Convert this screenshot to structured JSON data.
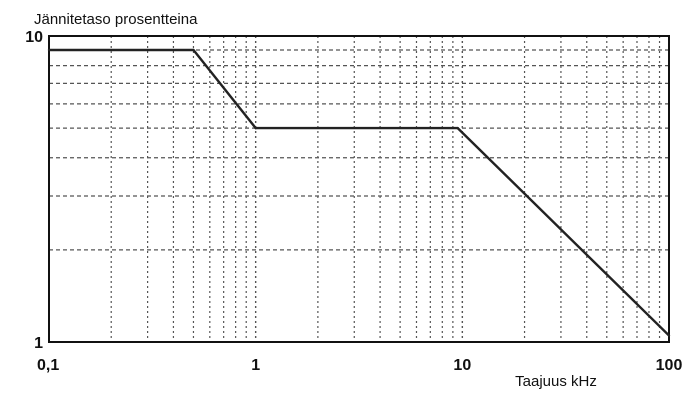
{
  "chart_data": {
    "type": "line",
    "title": "",
    "ylabel": "Jännitetaso prosentteina",
    "xlabel": "Taajuus kHz",
    "x_scale": "log",
    "y_scale": "log",
    "xlim": [
      0.1,
      100
    ],
    "ylim": [
      1,
      10
    ],
    "grid": true,
    "grid_style": "dotted",
    "x_ticks": [
      {
        "value": 0.1,
        "label": "0,1"
      },
      {
        "value": 1,
        "label": "1"
      },
      {
        "value": 10,
        "label": "10"
      },
      {
        "value": 100,
        "label": "100"
      }
    ],
    "y_ticks": [
      {
        "value": 1,
        "label": "1"
      },
      {
        "value": 10,
        "label": "10"
      }
    ],
    "series": [
      {
        "x": [
          0.1,
          0.5,
          1,
          9.5,
          100
        ],
        "y": [
          9,
          9,
          5,
          5,
          1.05
        ]
      }
    ],
    "colors": {
      "line": "#222222",
      "grid": "#555555",
      "frame": "#111111"
    }
  }
}
